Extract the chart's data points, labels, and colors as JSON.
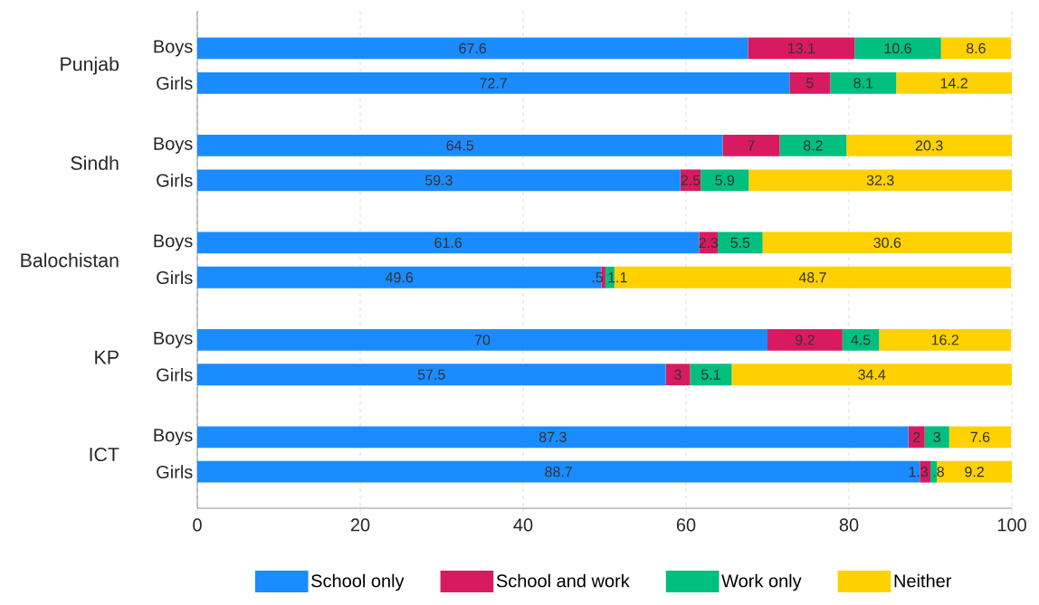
{
  "chart_data": {
    "type": "bar",
    "orientation": "horizontal",
    "stacked": true,
    "categories": [
      "Boys",
      "Girls",
      "Boys",
      "Girls",
      "Boys",
      "Girls",
      "Boys",
      "Girls",
      "Boys",
      "Girls"
    ],
    "annotations": [
      "Punjab",
      "Sindh",
      "Balochistan",
      "KP",
      "ICT"
    ],
    "series": [
      {
        "name": "School only",
        "color": "#1a8cff",
        "values": [
          67.6,
          72.7,
          64.5,
          59.3,
          61.6,
          49.6,
          70,
          57.5,
          87.3,
          88.7
        ],
        "value_labels": [
          "67.6",
          "72.7",
          "64.5",
          "59.3",
          "61.6",
          "49.6",
          "70",
          "57.5",
          "87.3",
          "88.7"
        ]
      },
      {
        "name": "School and work",
        "color": "#d81b60",
        "values": [
          13.1,
          5,
          7,
          2.5,
          2.3,
          0.5,
          9.2,
          3,
          2,
          1.3
        ],
        "value_labels": [
          "13.1",
          "5",
          "7",
          "2.5",
          "2.3",
          ".5",
          "9.2",
          "3",
          "2",
          "1.3"
        ]
      },
      {
        "name": "Work only",
        "color": "#00bf7f",
        "values": [
          10.6,
          8.1,
          8.2,
          5.9,
          5.5,
          1.1,
          4.5,
          5.1,
          3,
          0.8
        ],
        "value_labels": [
          "10.6",
          "8.1",
          "8.2",
          "5.9",
          "5.5",
          "1.1",
          "4.5",
          "5.1",
          "3",
          ".8"
        ]
      },
      {
        "name": "Neither",
        "color": "#ffd100",
        "values": [
          8.6,
          14.2,
          20.3,
          32.3,
          30.6,
          48.7,
          16.2,
          34.4,
          7.6,
          9.2
        ],
        "value_labels": [
          "8.6",
          "14.2",
          "20.3",
          "32.3",
          "30.6",
          "48.7",
          "16.2",
          "34.4",
          "7.6",
          "9.2"
        ]
      }
    ],
    "xlim": [
      0,
      100
    ],
    "xticks": [
      0,
      20,
      40,
      60,
      80,
      100
    ],
    "grid": "x",
    "legend": "bottom"
  }
}
